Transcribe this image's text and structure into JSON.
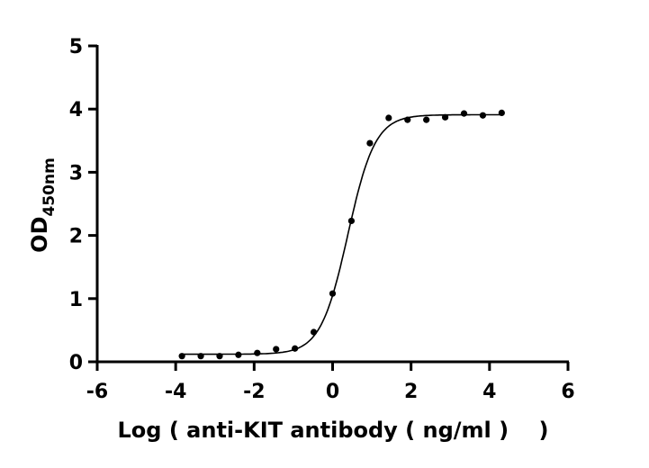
{
  "chart_data": {
    "type": "scatter",
    "title": "",
    "xlabel": "Log ( anti-KIT antibody ( ng/ml )    )",
    "ylabel_main": "OD",
    "ylabel_sub": "450nm",
    "xlim": [
      -6,
      6
    ],
    "ylim": [
      0,
      5
    ],
    "xticks": [
      "-6",
      "-4",
      "-2",
      "0",
      "2",
      "4",
      "6"
    ],
    "yticks": [
      "0",
      "1",
      "2",
      "3",
      "4",
      "5"
    ],
    "grid": false,
    "points": {
      "x": [
        -3.84,
        -3.36,
        -2.88,
        -2.4,
        -1.92,
        -1.44,
        -0.96,
        -0.48,
        0.0,
        0.48,
        0.95,
        1.43,
        1.91,
        2.39,
        2.87,
        3.35,
        3.83,
        4.31
      ],
      "y": [
        0.09,
        0.09,
        0.09,
        0.11,
        0.14,
        0.2,
        0.21,
        0.47,
        1.08,
        2.23,
        3.46,
        3.86,
        3.83,
        3.83,
        3.87,
        3.93,
        3.9,
        3.94
      ]
    },
    "fit_curve": {
      "model": "4PL",
      "bottom": 0.12,
      "top": 3.91,
      "logEC50": 0.39,
      "hill": 1.25
    },
    "color": "#000000"
  }
}
